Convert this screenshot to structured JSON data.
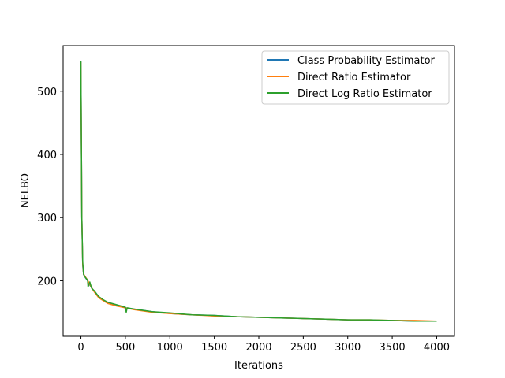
{
  "chart_data": {
    "type": "line",
    "title": "",
    "xlabel": "Iterations",
    "ylabel": "NELBO",
    "xlim": [
      -200,
      4200
    ],
    "ylim": [
      112,
      572
    ],
    "xticks": [
      0,
      500,
      1000,
      1500,
      2000,
      2500,
      3000,
      3500,
      4000
    ],
    "yticks": [
      200,
      300,
      400,
      500
    ],
    "grid": false,
    "legend_position": "top-right",
    "series": [
      {
        "name": "Class Probability Estimator",
        "color": "#1f77b4",
        "x": [
          0,
          10,
          20,
          30,
          50,
          75,
          100,
          150,
          200,
          300,
          400,
          500,
          600,
          800,
          1000,
          1250,
          1500,
          1750,
          2000,
          2250,
          2500,
          2750,
          3000,
          3250,
          3500,
          3750,
          4000
        ],
        "y": [
          547,
          300,
          225,
          210,
          205,
          200,
          193,
          183,
          174,
          165,
          161,
          157,
          155,
          151,
          148,
          146,
          145,
          143,
          142,
          141,
          140,
          139,
          138,
          137,
          137,
          136,
          136
        ]
      },
      {
        "name": "Direct Ratio Estimator",
        "color": "#ff7f0e",
        "x": [
          0,
          10,
          20,
          30,
          50,
          75,
          100,
          150,
          200,
          300,
          400,
          500,
          600,
          800,
          1000,
          1250,
          1500,
          1750,
          2000,
          2250,
          2500,
          2750,
          3000,
          3250,
          3500,
          3750,
          4000
        ],
        "y": [
          546,
          302,
          226,
          211,
          206,
          201,
          194,
          182,
          173,
          164,
          160,
          157,
          154,
          150,
          148,
          146,
          144,
          143,
          142,
          141,
          140,
          139,
          138,
          138,
          137,
          137,
          136
        ]
      },
      {
        "name": "Direct Log Ratio Estimator",
        "color": "#2ca02c",
        "x": [
          0,
          10,
          20,
          30,
          50,
          75,
          80,
          100,
          120,
          150,
          200,
          250,
          300,
          400,
          500,
          510,
          520,
          600,
          800,
          1000,
          1250,
          1500,
          1750,
          2000,
          2250,
          2500,
          2750,
          3000,
          3250,
          3500,
          3750,
          4000
        ],
        "y": [
          548,
          299,
          230,
          210,
          205,
          201,
          190,
          198,
          188,
          184,
          175,
          170,
          166,
          162,
          158,
          150,
          157,
          155,
          151,
          149,
          146,
          145,
          143,
          142,
          141,
          140,
          139,
          138,
          138,
          137,
          136,
          136
        ]
      }
    ]
  }
}
